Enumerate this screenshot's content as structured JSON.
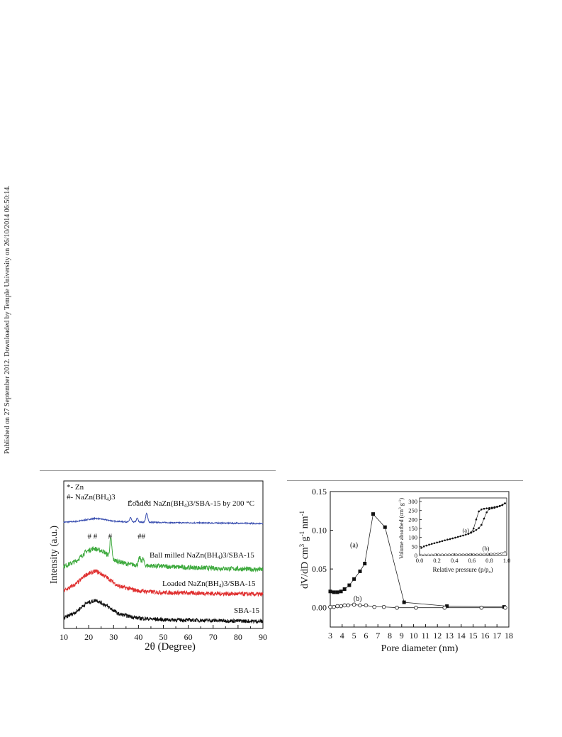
{
  "side_note": "Published on 27 September 2012. Downloaded by Temple University on 26/10/2014 06:50:14.",
  "chart_data": [
    {
      "type": "line",
      "xlabel": "2θ (Degree)",
      "ylabel": "Intensity (a.u.)",
      "xlim": [
        10,
        90
      ],
      "xticks": [
        10,
        20,
        30,
        40,
        50,
        60,
        70,
        80,
        90
      ],
      "legend": {
        "zn": "*- Zn",
        "nazn_prefix": "#- NaZn(BH",
        "nazn_sub": "4",
        "nazn_suffix": ")3"
      },
      "series": [
        {
          "name_parts": [
            "Loaded NaZn(BH",
            "4",
            ")3/SBA-15 by 200 °C"
          ],
          "color": "#3a4fb0",
          "profile": [
            [
              10,
              0.1
            ],
            [
              15,
              0.16
            ],
            [
              20,
              0.32
            ],
            [
              23,
              0.4
            ],
            [
              26,
              0.32
            ],
            [
              30,
              0.18
            ],
            [
              36,
              0.12
            ],
            [
              43,
              0.1
            ],
            [
              55,
              0.06
            ],
            [
              70,
              0.04
            ],
            [
              90,
              0.0
            ]
          ],
          "peaks": [
            [
              36.8,
              0.35,
              0.35
            ],
            [
              39.5,
              0.3,
              0.35
            ],
            [
              43.3,
              0.7,
              0.4
            ]
          ],
          "noise": 0.09,
          "marks": [
            {
              "x": 36.8,
              "text": "*"
            },
            {
              "x": 39.4,
              "text": "*"
            },
            {
              "x": 43.3,
              "text": "*"
            }
          ]
        },
        {
          "name_parts": [
            "Ball milled  NaZn(BH",
            "4",
            ")3/SBA-15"
          ],
          "color": "#3faa3f",
          "profile": [
            [
              10,
              0.15
            ],
            [
              15,
              0.4
            ],
            [
              19,
              0.85
            ],
            [
              22,
              1.0
            ],
            [
              26,
              0.85
            ],
            [
              30,
              0.45
            ],
            [
              36,
              0.25
            ],
            [
              45,
              0.18
            ],
            [
              60,
              0.1
            ],
            [
              75,
              0.05
            ],
            [
              90,
              0.0
            ]
          ],
          "peaks": [
            [
              28.9,
              0.9,
              0.4
            ],
            [
              40.5,
              0.35,
              0.4
            ],
            [
              41.8,
              0.3,
              0.4
            ]
          ],
          "noise": 0.22,
          "marks": [
            {
              "x": 21.5,
              "text": "# #"
            },
            {
              "x": 28.6,
              "text": "#"
            },
            {
              "x": 41.2,
              "text": "##"
            }
          ]
        },
        {
          "name_parts": [
            "Loaded NaZn(BH",
            "4",
            ")3/SBA-15"
          ],
          "color": "#e03030",
          "profile": [
            [
              10,
              0.15
            ],
            [
              15,
              0.45
            ],
            [
              19,
              0.85
            ],
            [
              23,
              1.0
            ],
            [
              27,
              0.75
            ],
            [
              32,
              0.35
            ],
            [
              40,
              0.15
            ],
            [
              50,
              0.08
            ],
            [
              70,
              0.04
            ],
            [
              90,
              0.0
            ]
          ],
          "peaks": [],
          "noise": 0.18,
          "marks": []
        },
        {
          "name_parts": [
            "SBA-15"
          ],
          "color": "#111111",
          "profile": [
            [
              10,
              0.15
            ],
            [
              15,
              0.45
            ],
            [
              19,
              0.85
            ],
            [
              23,
              1.0
            ],
            [
              27,
              0.75
            ],
            [
              32,
              0.35
            ],
            [
              40,
              0.15
            ],
            [
              50,
              0.08
            ],
            [
              70,
              0.04
            ],
            [
              90,
              0.0
            ]
          ],
          "peaks": [],
          "noise": 0.18,
          "marks": []
        }
      ]
    },
    {
      "type": "line",
      "xlabel": "Pore diameter (nm)",
      "ylabel_parts": [
        "dV/dD cm",
        "3",
        " g",
        "-1",
        " nm",
        "-1"
      ],
      "xlim": [
        3,
        18
      ],
      "ylim": [
        -0.025,
        0.15
      ],
      "xticks": [
        3,
        4,
        5,
        6,
        7,
        8,
        9,
        10,
        11,
        12,
        13,
        14,
        15,
        16,
        17,
        18
      ],
      "yticks": [
        0.0,
        0.05,
        0.1,
        0.15
      ],
      "ytick_labels": [
        "0.00",
        "0.05",
        "0.10",
        "0.15"
      ],
      "series": [
        {
          "name": "(a)",
          "marker": "filled-square",
          "x": [
            3.0,
            3.3,
            3.6,
            3.9,
            4.2,
            4.6,
            5.0,
            5.5,
            5.9,
            6.6,
            7.6,
            9.2,
            12.8,
            17.6
          ],
          "y": [
            0.021,
            0.02,
            0.02,
            0.021,
            0.024,
            0.029,
            0.037,
            0.047,
            0.057,
            0.121,
            0.104,
            0.007,
            0.002,
            0.001
          ]
        },
        {
          "name": "(b)",
          "marker": "open-circle",
          "x": [
            3.0,
            3.3,
            3.6,
            3.9,
            4.2,
            4.5,
            5.0,
            5.5,
            6.0,
            6.7,
            7.5,
            8.6,
            10.2,
            12.6,
            15.7,
            17.7
          ],
          "y": [
            0.001,
            0.001,
            0.002,
            0.002,
            0.003,
            0.003,
            0.004,
            0.003,
            0.003,
            0.001,
            0.001,
            0.0,
            0.0,
            0.0,
            0.0,
            0.0
          ]
        }
      ],
      "labels": [
        {
          "text": "(a)",
          "x": 5.0,
          "y": 0.078
        },
        {
          "text": "(b)",
          "x": 5.3,
          "y": 0.009
        }
      ],
      "inset": {
        "xlabel_parts": [
          "Relative pressure (p/p",
          "o",
          ")"
        ],
        "ylabel_parts": [
          "Volume absorbed (cm",
          "3",
          " g",
          "-1",
          ")"
        ],
        "xlim": [
          0.0,
          1.0
        ],
        "ylim": [
          0,
          320
        ],
        "xticks": [
          0.0,
          0.2,
          0.4,
          0.6,
          0.8,
          1.0
        ],
        "xtick_labels": [
          "0.0",
          "0.2",
          "0.4",
          "0.6",
          "0.8",
          "1.0"
        ],
        "yticks": [
          0,
          50,
          100,
          150,
          200,
          250,
          300
        ],
        "series": [
          {
            "name": "(a)",
            "marker": "filled",
            "x": [
              0.02,
              0.05,
              0.08,
              0.11,
              0.14,
              0.17,
              0.2,
              0.23,
              0.26,
              0.29,
              0.32,
              0.35,
              0.38,
              0.41,
              0.44,
              0.47,
              0.5,
              0.53,
              0.56,
              0.59,
              0.62,
              0.65,
              0.68,
              0.71,
              0.74,
              0.77,
              0.8,
              0.83,
              0.86,
              0.89,
              0.92,
              0.95,
              0.98
            ],
            "y": [
              42,
              50,
              55,
              60,
              64,
              68,
              72,
              76,
              80,
              84,
              88,
              91,
              95,
              99,
              103,
              107,
              111,
              116,
              120,
              126,
              134,
              142,
              152,
              170,
              205,
              240,
              258,
              262,
              265,
              270,
              274,
              280,
              290
            ]
          },
          {
            "name": "(a)",
            "marker": "filled",
            "x": [
              0.98,
              0.95,
              0.92,
              0.89,
              0.86,
              0.83,
              0.8,
              0.77,
              0.74,
              0.71,
              0.68,
              0.65,
              0.62,
              0.59,
              0.56
            ],
            "y": [
              290,
              282,
              276,
              272,
              269,
              266,
              264,
              262,
              260,
              256,
              245,
              200,
              150,
              128,
              121
            ]
          },
          {
            "name": "(b)",
            "marker": "open",
            "x": [
              0.02,
              0.06,
              0.1,
              0.14,
              0.18,
              0.22,
              0.26,
              0.3,
              0.34,
              0.38,
              0.42,
              0.46,
              0.5,
              0.54,
              0.58,
              0.62,
              0.66,
              0.7,
              0.74,
              0.78,
              0.82,
              0.86,
              0.9,
              0.94,
              0.98
            ],
            "y": [
              2,
              3,
              3,
              3,
              4,
              4,
              4,
              4,
              5,
              5,
              5,
              5,
              5,
              6,
              6,
              6,
              6,
              7,
              7,
              8,
              8,
              9,
              10,
              12,
              18
            ]
          }
        ],
        "labels": [
          {
            "text": "(a)",
            "x": 0.53,
            "y": 128
          },
          {
            "text": "(b)",
            "x": 0.76,
            "y": 28
          }
        ]
      }
    }
  ]
}
